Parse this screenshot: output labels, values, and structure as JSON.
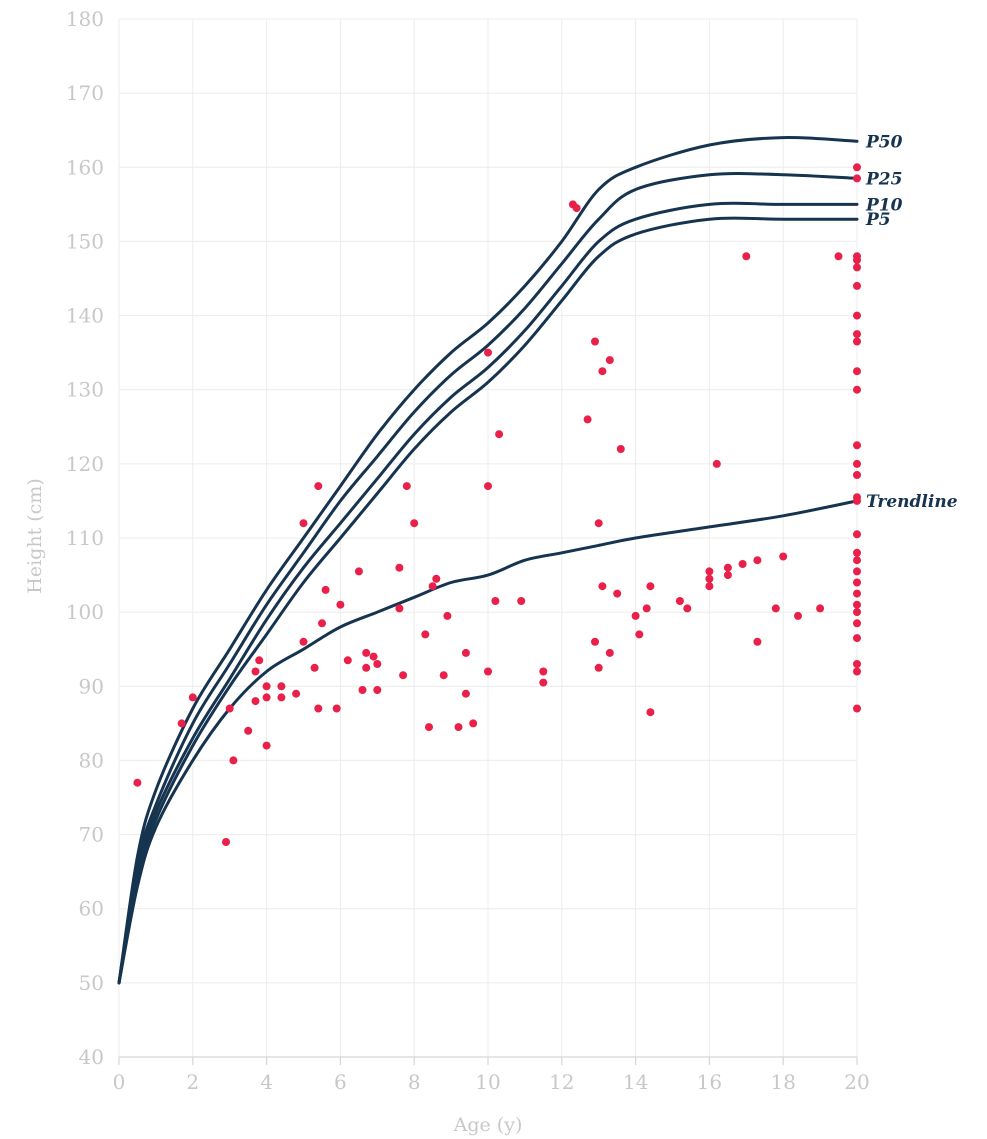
{
  "chart_data": {
    "type": "scatter",
    "xlabel": "Age (y)",
    "ylabel": "Height (cm)",
    "xlim": [
      0,
      20
    ],
    "ylim": [
      40,
      180
    ],
    "x_ticks": [
      "0",
      "2",
      "4",
      "6",
      "8",
      "10",
      "12",
      "14",
      "16",
      "18",
      "20"
    ],
    "y_ticks": [
      "40",
      "50",
      "60",
      "70",
      "80",
      "90",
      "100",
      "110",
      "120",
      "130",
      "140",
      "150",
      "160",
      "170",
      "180"
    ],
    "grid": true,
    "colors": {
      "points": "#e8204a",
      "curves": "#16344f",
      "grid": "#ececec",
      "axis_text": "#c8c8c8"
    },
    "curves": [
      {
        "name": "P50",
        "x": [
          0,
          0.5,
          1,
          2,
          3,
          4,
          5,
          6,
          7,
          8,
          9,
          10,
          11,
          12,
          13,
          14,
          16,
          18,
          20
        ],
        "y": [
          50,
          67,
          76,
          87,
          95,
          103,
          110,
          117,
          124,
          130,
          135,
          139,
          144,
          150,
          157,
          160,
          163,
          164,
          163.5
        ]
      },
      {
        "name": "P25",
        "x": [
          0,
          0.5,
          1,
          2,
          3,
          4,
          5,
          6,
          7,
          8,
          9,
          10,
          11,
          12,
          13,
          14,
          16,
          18,
          20
        ],
        "y": [
          50,
          66,
          74,
          85,
          93,
          101,
          108,
          115,
          121,
          127,
          132,
          136,
          141,
          147,
          153,
          157,
          159,
          159,
          158.5
        ]
      },
      {
        "name": "P10",
        "x": [
          0,
          0.5,
          1,
          2,
          3,
          4,
          5,
          6,
          7,
          8,
          9,
          10,
          11,
          12,
          13,
          14,
          16,
          18,
          20
        ],
        "y": [
          50,
          65,
          73,
          83,
          91,
          99,
          106,
          112,
          118,
          124,
          129,
          133,
          138,
          144,
          150,
          153,
          155,
          155,
          155
        ]
      },
      {
        "name": "P5",
        "x": [
          0,
          0.5,
          1,
          2,
          3,
          4,
          5,
          6,
          7,
          8,
          9,
          10,
          11,
          12,
          13,
          14,
          16,
          18,
          20
        ],
        "y": [
          50,
          64,
          72,
          82,
          90,
          97,
          104,
          110,
          116,
          122,
          127,
          131,
          136,
          142,
          148,
          151,
          153,
          153,
          153
        ]
      },
      {
        "name": "Trendline",
        "x": [
          0,
          0.5,
          1,
          2,
          3,
          4,
          5,
          6,
          7,
          8,
          9,
          10,
          11,
          12,
          13,
          14,
          16,
          18,
          20
        ],
        "y": [
          50,
          63,
          71,
          80,
          87,
          92,
          95,
          98,
          100,
          102,
          104,
          105,
          107,
          108,
          109,
          110,
          111.5,
          113,
          115
        ]
      }
    ],
    "points": [
      [
        0.5,
        77
      ],
      [
        1.7,
        85
      ],
      [
        2,
        88.5
      ],
      [
        2.9,
        69
      ],
      [
        3,
        87
      ],
      [
        3.1,
        80
      ],
      [
        3.5,
        84
      ],
      [
        3.7,
        92
      ],
      [
        3.7,
        88
      ],
      [
        3.8,
        93.5
      ],
      [
        4,
        90
      ],
      [
        4,
        88.5
      ],
      [
        4,
        82
      ],
      [
        4.4,
        90
      ],
      [
        4.4,
        88.5
      ],
      [
        4.8,
        89
      ],
      [
        5,
        112
      ],
      [
        5,
        96
      ],
      [
        5.3,
        92.5
      ],
      [
        5.4,
        117
      ],
      [
        5.4,
        87
      ],
      [
        5.5,
        98.5
      ],
      [
        5.6,
        103
      ],
      [
        5.9,
        87
      ],
      [
        6,
        101
      ],
      [
        6.2,
        93.5
      ],
      [
        6.5,
        105.5
      ],
      [
        6.6,
        89.5
      ],
      [
        6.7,
        94.5
      ],
      [
        6.7,
        92.5
      ],
      [
        6.9,
        94
      ],
      [
        7,
        93
      ],
      [
        7,
        89.5
      ],
      [
        7.6,
        106
      ],
      [
        7.6,
        100.5
      ],
      [
        7.7,
        91.5
      ],
      [
        7.8,
        117
      ],
      [
        8,
        112
      ],
      [
        8.3,
        97
      ],
      [
        8.4,
        84.5
      ],
      [
        8.5,
        103.5
      ],
      [
        8.6,
        104.5
      ],
      [
        8.8,
        91.5
      ],
      [
        8.9,
        99.5
      ],
      [
        9.2,
        84.5
      ],
      [
        9.4,
        94.5
      ],
      [
        9.4,
        89
      ],
      [
        9.6,
        85
      ],
      [
        10,
        135
      ],
      [
        10,
        117
      ],
      [
        10,
        92
      ],
      [
        10.2,
        101.5
      ],
      [
        10.3,
        124
      ],
      [
        10.9,
        101.5
      ],
      [
        11.5,
        92
      ],
      [
        11.5,
        90.5
      ],
      [
        12.3,
        155
      ],
      [
        12.4,
        154.5
      ],
      [
        12.7,
        126
      ],
      [
        12.9,
        136.5
      ],
      [
        12.9,
        96
      ],
      [
        13,
        112
      ],
      [
        13,
        92.5
      ],
      [
        13.1,
        132.5
      ],
      [
        13.1,
        103.5
      ],
      [
        13.3,
        134
      ],
      [
        13.3,
        94.5
      ],
      [
        13.5,
        102.5
      ],
      [
        13.6,
        122
      ],
      [
        14,
        99.5
      ],
      [
        14.1,
        97
      ],
      [
        14.3,
        100.5
      ],
      [
        14.4,
        103.5
      ],
      [
        14.4,
        86.5
      ],
      [
        15.2,
        101.5
      ],
      [
        15.4,
        100.5
      ],
      [
        16,
        105.5
      ],
      [
        16,
        104.5
      ],
      [
        16,
        103.5
      ],
      [
        16.2,
        120
      ],
      [
        16.5,
        106
      ],
      [
        16.5,
        105
      ],
      [
        16.9,
        106.5
      ],
      [
        17,
        148
      ],
      [
        17.3,
        96
      ],
      [
        17.3,
        107
      ],
      [
        17.8,
        100.5
      ],
      [
        18,
        107.5
      ],
      [
        18.4,
        99.5
      ],
      [
        19,
        100.5
      ],
      [
        19.5,
        148
      ],
      [
        20,
        160
      ],
      [
        20,
        158.5
      ],
      [
        20,
        148
      ],
      [
        20,
        147.5
      ],
      [
        20,
        146.5
      ],
      [
        20,
        144
      ],
      [
        20,
        140
      ],
      [
        20,
        137.5
      ],
      [
        20,
        136.5
      ],
      [
        20,
        132.5
      ],
      [
        20,
        130
      ],
      [
        20,
        122.5
      ],
      [
        20,
        120
      ],
      [
        20,
        118.5
      ],
      [
        20,
        115.5
      ],
      [
        20,
        115
      ],
      [
        20,
        110.5
      ],
      [
        20,
        108
      ],
      [
        20,
        107
      ],
      [
        20,
        105.5
      ],
      [
        20,
        104
      ],
      [
        20,
        102.5
      ],
      [
        20,
        101
      ],
      [
        20,
        100
      ],
      [
        20,
        98.5
      ],
      [
        20,
        96.5
      ],
      [
        20,
        93
      ],
      [
        20,
        92
      ],
      [
        20,
        87
      ]
    ]
  }
}
